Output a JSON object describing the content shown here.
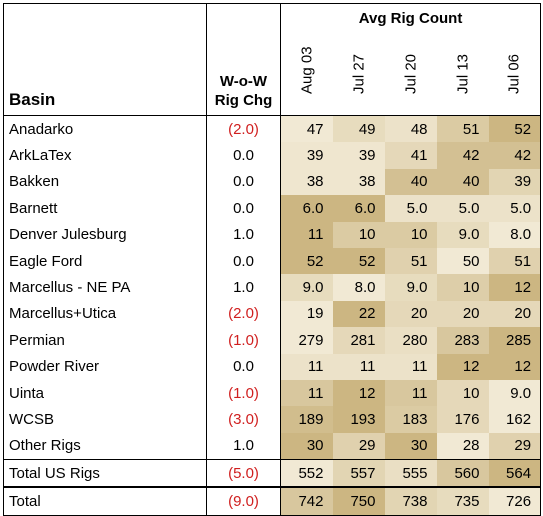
{
  "header": {
    "basin_label": "Basin",
    "wow_line1": "W-o-W",
    "wow_line2": "Rig Chg",
    "avg_label": "Avg Rig Count",
    "dates": [
      "Aug 03",
      "Jul 27",
      "Jul 20",
      "Jul 13",
      "Jul 06"
    ]
  },
  "colors": {
    "negative_text": "#d01f1f",
    "shade_light": "#f6f0df",
    "shade_dark": "#c4ac72"
  },
  "rows": [
    {
      "basin": "Anadarko",
      "wow": "(2.0)",
      "neg": true,
      "values": [
        "47",
        "49",
        "48",
        "51",
        "52"
      ],
      "shade": [
        0.1,
        0.3,
        0.2,
        0.55,
        0.85
      ]
    },
    {
      "basin": "ArkLaTex",
      "wow": "0.0",
      "neg": false,
      "values": [
        "39",
        "39",
        "41",
        "42",
        "42"
      ],
      "shade": [
        0.15,
        0.15,
        0.35,
        0.7,
        0.7
      ]
    },
    {
      "basin": "Bakken",
      "wow": "0.0",
      "neg": false,
      "values": [
        "38",
        "38",
        "40",
        "40",
        "39"
      ],
      "shade": [
        0.15,
        0.15,
        0.7,
        0.7,
        0.4
      ]
    },
    {
      "basin": "Barnett",
      "wow": "0.0",
      "neg": false,
      "values": [
        "6.0",
        "6.0",
        "5.0",
        "5.0",
        "5.0"
      ],
      "shade": [
        0.85,
        0.85,
        0.2,
        0.2,
        0.2
      ]
    },
    {
      "basin": "Denver Julesburg",
      "wow": "1.0",
      "neg": false,
      "values": [
        "11",
        "10",
        "10",
        "9.0",
        "8.0"
      ],
      "shade": [
        0.85,
        0.55,
        0.55,
        0.3,
        0.1
      ]
    },
    {
      "basin": "Eagle Ford",
      "wow": "0.0",
      "neg": false,
      "values": [
        "52",
        "52",
        "51",
        "50",
        "51"
      ],
      "shade": [
        0.85,
        0.85,
        0.45,
        0.1,
        0.45
      ]
    },
    {
      "basin": "Marcellus - NE PA",
      "wow": "1.0",
      "neg": false,
      "values": [
        "9.0",
        "8.0",
        "9.0",
        "10",
        "12"
      ],
      "shade": [
        0.3,
        0.1,
        0.3,
        0.5,
        0.85
      ]
    },
    {
      "basin": "Marcellus+Utica",
      "wow": "(2.0)",
      "neg": true,
      "values": [
        "19",
        "22",
        "20",
        "20",
        "20"
      ],
      "shade": [
        0.1,
        0.85,
        0.35,
        0.35,
        0.35
      ]
    },
    {
      "basin": "Permian",
      "wow": "(1.0)",
      "neg": true,
      "values": [
        "279",
        "281",
        "280",
        "283",
        "285"
      ],
      "shade": [
        0.1,
        0.35,
        0.25,
        0.6,
        0.85
      ]
    },
    {
      "basin": "Powder River",
      "wow": "0.0",
      "neg": false,
      "values": [
        "11",
        "11",
        "11",
        "12",
        "12"
      ],
      "shade": [
        0.2,
        0.2,
        0.2,
        0.85,
        0.85
      ]
    },
    {
      "basin": "Uinta",
      "wow": "(1.0)",
      "neg": true,
      "values": [
        "11",
        "12",
        "11",
        "10",
        "9.0"
      ],
      "shade": [
        0.6,
        0.85,
        0.6,
        0.35,
        0.1
      ]
    },
    {
      "basin": "WCSB",
      "wow": "(3.0)",
      "neg": true,
      "values": [
        "189",
        "193",
        "183",
        "176",
        "162"
      ],
      "shade": [
        0.75,
        0.85,
        0.55,
        0.35,
        0.1
      ]
    },
    {
      "basin": "Other Rigs",
      "wow": "1.0",
      "neg": false,
      "values": [
        "30",
        "29",
        "30",
        "28",
        "29"
      ],
      "shade": [
        0.85,
        0.45,
        0.85,
        0.1,
        0.45
      ]
    }
  ],
  "total_us": {
    "basin": "Total US Rigs",
    "wow": "(5.0)",
    "neg": true,
    "values": [
      "552",
      "557",
      "555",
      "560",
      "564"
    ],
    "shade": [
      0.1,
      0.4,
      0.25,
      0.6,
      0.85
    ]
  },
  "total": {
    "basin": "Total",
    "wow": "(9.0)",
    "neg": true,
    "values": [
      "742",
      "750",
      "738",
      "735",
      "726"
    ],
    "shade": [
      0.6,
      0.85,
      0.4,
      0.3,
      0.1
    ]
  }
}
